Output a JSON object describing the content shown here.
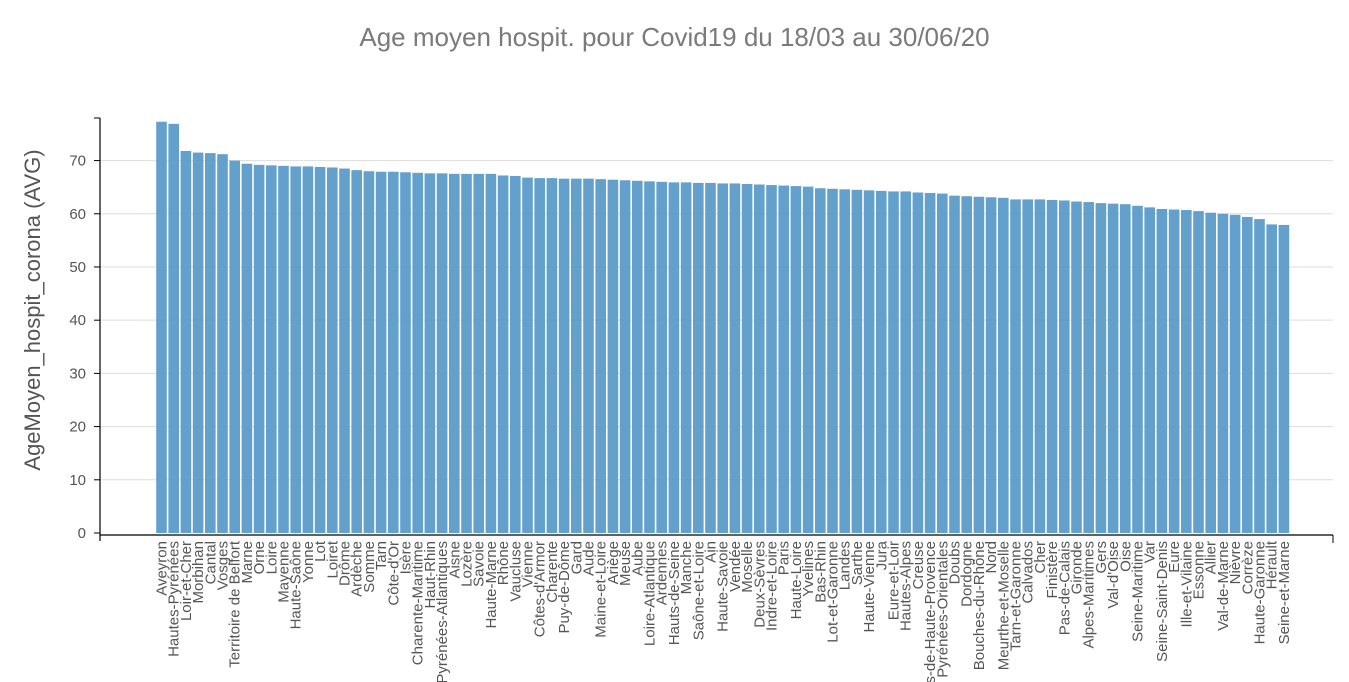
{
  "chart_data": {
    "type": "bar",
    "title": "Age moyen hospit. pour Covid19 du 18/03 au 30/06/20",
    "xlabel": "",
    "ylabel": "AgeMoyen_hospit_corona (AVG)",
    "ylim": [
      0,
      78
    ],
    "yticks": [
      0,
      10,
      20,
      30,
      40,
      50,
      60,
      70
    ],
    "grid": true,
    "bar_color": "#5b9bc9",
    "categories": [
      "Aveyron",
      "Hautes-Pyrénées",
      "Loir-et-Cher",
      "Morbihan",
      "Cantal",
      "Vosges",
      "Territoire de Belfort",
      "Marne",
      "Orne",
      "Loire",
      "Mayenne",
      "Haute-Saône",
      "Yonne",
      "Lot",
      "Loiret",
      "Drôme",
      "Ardèche",
      "Somme",
      "Tarn",
      "Côte-d'Or",
      "Isère",
      "Charente-Maritime",
      "Haut-Rhin",
      "Pyrénées-Atlantiques",
      "Aisne",
      "Lozère",
      "Savoie",
      "Haute-Marne",
      "Rhône",
      "Vaucluse",
      "Vienne",
      "Côtes-d'Armor",
      "Charente",
      "Puy-de-Dôme",
      "Gard",
      "Aude",
      "Maine-et-Loire",
      "Ariège",
      "Meuse",
      "Aube",
      "Loire-Atlantique",
      "Ardennes",
      "Hauts-de-Seine",
      "Manche",
      "Saône-et-Loire",
      "Ain",
      "Haute-Savoie",
      "Vendée",
      "Moselle",
      "Deux-Sèvres",
      "Indre-et-Loire",
      "Paris",
      "Haute-Loire",
      "Yvelines",
      "Bas-Rhin",
      "Lot-et-Garonne",
      "Landes",
      "Sarthe",
      "Haute-Vienne",
      "Jura",
      "Eure-et-Loir",
      "Hautes-Alpes",
      "Creuse",
      "Alpes-de-Haute-Provence",
      "Pyrénées-Orientales",
      "Doubs",
      "Dordogne",
      "Bouches-du-Rhône",
      "Nord",
      "Meurthe-et-Moselle",
      "Tarn-et-Garonne",
      "Calvados",
      "Cher",
      "Finistère",
      "Pas-de-Calais",
      "Gironde",
      "Alpes-Maritimes",
      "Gers",
      "Val-d'Oise",
      "Oise",
      "Seine-Maritime",
      "Var",
      "Seine-Saint-Denis",
      "Eure",
      "Ille-et-Vilaine",
      "Essonne",
      "Allier",
      "Val-de-Marne",
      "Nièvre",
      "Corrèze",
      "Haute-Garonne",
      "Hérault",
      "Seine-et-Marne"
    ],
    "values": [
      77.3,
      76.9,
      71.8,
      71.5,
      71.4,
      71.2,
      70.0,
      69.4,
      69.2,
      69.1,
      69.0,
      68.9,
      68.9,
      68.8,
      68.7,
      68.5,
      68.2,
      68.0,
      67.9,
      67.9,
      67.8,
      67.7,
      67.6,
      67.6,
      67.5,
      67.5,
      67.5,
      67.5,
      67.2,
      67.1,
      66.8,
      66.7,
      66.7,
      66.6,
      66.6,
      66.6,
      66.5,
      66.4,
      66.3,
      66.2,
      66.1,
      66.0,
      65.9,
      65.9,
      65.8,
      65.8,
      65.7,
      65.7,
      65.6,
      65.5,
      65.4,
      65.3,
      65.2,
      65.1,
      64.8,
      64.7,
      64.6,
      64.5,
      64.4,
      64.3,
      64.2,
      64.2,
      64.0,
      63.9,
      63.8,
      63.4,
      63.3,
      63.2,
      63.1,
      63.0,
      62.7,
      62.7,
      62.7,
      62.6,
      62.5,
      62.3,
      62.2,
      62.0,
      61.9,
      61.8,
      61.5,
      61.2,
      60.9,
      60.8,
      60.7,
      60.5,
      60.2,
      60.0,
      59.8,
      59.4,
      59.0,
      58.0,
      57.9
    ]
  }
}
